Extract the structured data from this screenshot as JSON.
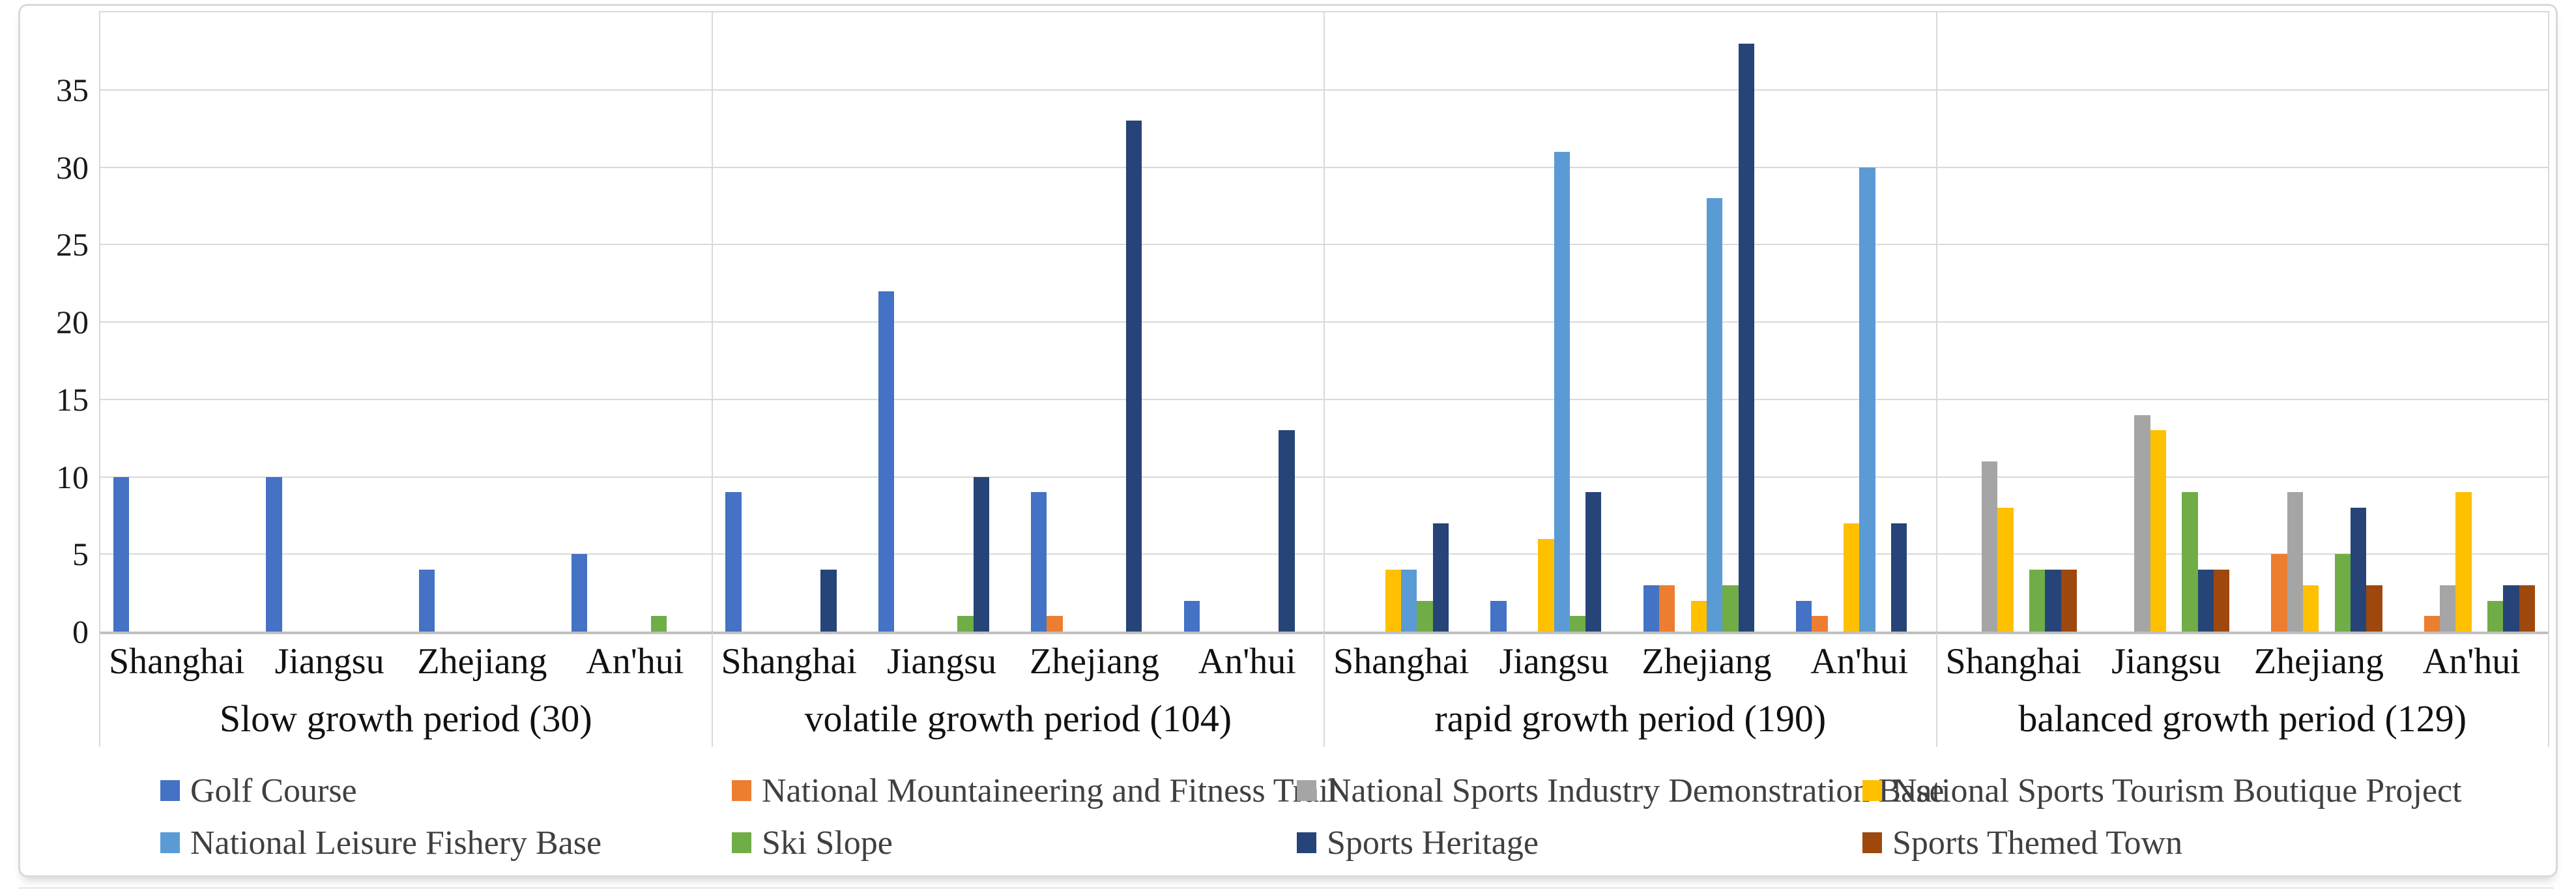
{
  "chart_data": {
    "type": "bar",
    "title": "",
    "xlabel": "",
    "ylabel": "",
    "ylim": [
      0,
      40
    ],
    "yticks": [
      0,
      5,
      10,
      15,
      20,
      25,
      30,
      35
    ],
    "grid": true,
    "legend_position": "bottom",
    "series": [
      {
        "slug": "golf-course",
        "name": "Golf Course",
        "color": "#4472C4"
      },
      {
        "slug": "mountaineering-trail",
        "name": "National Mountaineering and Fitness Trail",
        "color": "#ED7D31"
      },
      {
        "slug": "demonstration-base",
        "name": "National Sports Industry Demonstration Base",
        "color": "#A5A5A5"
      },
      {
        "slug": "tourism-boutique",
        "name": "National Sports Tourism Boutique Project",
        "color": "#FFC000"
      },
      {
        "slug": "fishery-base",
        "name": "National Leisure Fishery Base",
        "color": "#5B9BD5"
      },
      {
        "slug": "ski-slope",
        "name": "Ski Slope",
        "color": "#70AD47"
      },
      {
        "slug": "sports-heritage",
        "name": "Sports Heritage",
        "color": "#264478"
      },
      {
        "slug": "themed-town",
        "name": "Sports Themed Town",
        "color": "#9E480E"
      }
    ],
    "legend_rows": [
      [
        0,
        1,
        2,
        3
      ],
      [
        4,
        5,
        6,
        7
      ]
    ],
    "groups": [
      {
        "label": "Slow growth period (30)",
        "cities": [
          {
            "name": "Shanghai",
            "values": [
              10,
              0,
              0,
              0,
              0,
              0,
              0,
              0
            ]
          },
          {
            "name": "Jiangsu",
            "values": [
              10,
              0,
              0,
              0,
              0,
              0,
              0,
              0
            ]
          },
          {
            "name": "Zhejiang",
            "values": [
              4,
              0,
              0,
              0,
              0,
              0,
              0,
              0
            ]
          },
          {
            "name": "An'hui",
            "values": [
              5,
              0,
              0,
              0,
              0,
              1,
              0,
              0
            ]
          }
        ]
      },
      {
        "label": "volatile growth period (104)",
        "cities": [
          {
            "name": "Shanghai",
            "values": [
              9,
              0,
              0,
              0,
              0,
              0,
              4,
              0
            ]
          },
          {
            "name": "Jiangsu",
            "values": [
              22,
              0,
              0,
              0,
              0,
              1,
              10,
              0
            ]
          },
          {
            "name": "Zhejiang",
            "values": [
              9,
              1,
              0,
              0,
              0,
              0,
              33,
              0
            ]
          },
          {
            "name": "An'hui",
            "values": [
              2,
              0,
              0,
              0,
              0,
              0,
              13,
              0
            ]
          }
        ]
      },
      {
        "label": "rapid growth period (190)",
        "cities": [
          {
            "name": "Shanghai",
            "values": [
              0,
              0,
              0,
              4,
              4,
              2,
              7,
              0
            ]
          },
          {
            "name": "Jiangsu",
            "values": [
              2,
              0,
              0,
              6,
              31,
              1,
              9,
              0
            ]
          },
          {
            "name": "Zhejiang",
            "values": [
              3,
              3,
              0,
              2,
              28,
              3,
              38,
              0
            ]
          },
          {
            "name": "An'hui",
            "values": [
              2,
              1,
              0,
              7,
              30,
              0,
              7,
              0
            ]
          }
        ]
      },
      {
        "label": "balanced growth period (129)",
        "cities": [
          {
            "name": "Shanghai",
            "values": [
              0,
              0,
              11,
              8,
              0,
              4,
              4,
              4
            ]
          },
          {
            "name": "Jiangsu",
            "values": [
              0,
              0,
              14,
              13,
              0,
              9,
              4,
              4
            ]
          },
          {
            "name": "Zhejiang",
            "values": [
              0,
              5,
              9,
              3,
              0,
              5,
              8,
              3
            ]
          },
          {
            "name": "An'hui",
            "values": [
              0,
              1,
              3,
              9,
              0,
              2,
              3,
              3
            ]
          }
        ]
      }
    ]
  }
}
